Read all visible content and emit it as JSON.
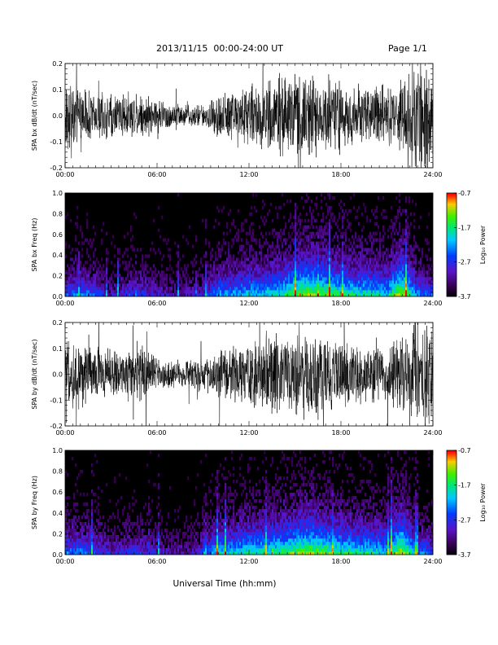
{
  "header": {
    "date_range": "2013/11/15  00:00-24:00 UT",
    "page": "Page 1/1"
  },
  "xlabel": "Universal Time (hh:mm)",
  "colors": {
    "background": "#ffffff",
    "ink": "#000000",
    "spectrogram_bg": "#000000"
  },
  "chart_data": [
    {
      "type": "line",
      "ylabel": "SPA bx dB/dt (nT/sec)",
      "xlim": [
        0,
        24
      ],
      "ylim": [
        -0.2,
        0.2
      ],
      "x_ticks": [
        "00:00",
        "06:00",
        "12:00",
        "18:00",
        "24:00"
      ],
      "y_ticks": [
        "-0.2",
        "-0.1",
        "0.0",
        "0.1",
        "0.2"
      ],
      "envelope": {
        "hours": [
          0,
          1,
          2,
          3,
          4,
          5,
          6,
          7,
          8,
          9,
          10,
          11,
          12,
          13,
          14,
          15,
          16,
          17,
          18,
          19,
          20,
          21,
          22,
          23,
          24
        ],
        "amplitude": [
          0.13,
          0.1,
          0.09,
          0.08,
          0.08,
          0.08,
          0.06,
          0.05,
          0.04,
          0.04,
          0.08,
          0.1,
          0.11,
          0.12,
          0.14,
          0.15,
          0.15,
          0.13,
          0.12,
          0.11,
          0.11,
          0.1,
          0.14,
          0.2,
          0.2
        ]
      }
    },
    {
      "type": "heatmap",
      "ylabel": "SPA bx Freq (Hz)",
      "xlim": [
        0,
        24
      ],
      "ylim": [
        0.0,
        1.0
      ],
      "x_ticks": [
        "00:00",
        "06:00",
        "12:00",
        "18:00",
        "24:00"
      ],
      "y_ticks": [
        "0.0",
        "0.2",
        "0.4",
        "0.6",
        "0.8",
        "1.0"
      ],
      "colorbar": {
        "label": "Log₁₀ Power",
        "ticks": [
          "-0.7",
          "-1.7",
          "-2.7",
          "-3.7"
        ],
        "min": -3.7,
        "max": -0.7
      },
      "activity": {
        "hours": [
          0,
          1,
          2,
          3,
          4,
          5,
          6,
          7,
          8,
          9,
          10,
          11,
          12,
          13,
          14,
          15,
          16,
          17,
          18,
          19,
          20,
          21,
          22,
          23,
          24
        ],
        "level": [
          0.35,
          0.4,
          0.35,
          0.2,
          0.3,
          0.3,
          0.25,
          0.2,
          0.2,
          0.25,
          0.45,
          0.45,
          0.5,
          0.5,
          0.55,
          0.65,
          0.7,
          0.65,
          0.6,
          0.55,
          0.55,
          0.5,
          0.75,
          0.4,
          0.35
        ]
      }
    },
    {
      "type": "line",
      "ylabel": "SPA by dB/dt (nT/sec)",
      "xlim": [
        0,
        24
      ],
      "ylim": [
        -0.2,
        0.2
      ],
      "x_ticks": [
        "00:00",
        "06:00",
        "12:00",
        "18:00",
        "24:00"
      ],
      "y_ticks": [
        "-0.2",
        "-0.1",
        "0.0",
        "0.1",
        "0.2"
      ],
      "envelope": {
        "hours": [
          0,
          1,
          2,
          3,
          4,
          5,
          6,
          7,
          8,
          9,
          10,
          11,
          12,
          13,
          14,
          15,
          16,
          17,
          18,
          19,
          20,
          21,
          22,
          23,
          24
        ],
        "amplitude": [
          0.11,
          0.12,
          0.1,
          0.09,
          0.08,
          0.1,
          0.06,
          0.05,
          0.05,
          0.06,
          0.09,
          0.1,
          0.12,
          0.13,
          0.14,
          0.15,
          0.15,
          0.14,
          0.12,
          0.11,
          0.11,
          0.1,
          0.14,
          0.2,
          0.2
        ]
      }
    },
    {
      "type": "heatmap",
      "ylabel": "SPA by Freq (Hz)",
      "xlim": [
        0,
        24
      ],
      "ylim": [
        0.0,
        1.0
      ],
      "x_ticks": [
        "00:00",
        "06:00",
        "12:00",
        "18:00",
        "24:00"
      ],
      "y_ticks": [
        "0.0",
        "0.2",
        "0.4",
        "0.6",
        "0.8",
        "1.0"
      ],
      "colorbar": {
        "label": "Log₁₀ Power",
        "ticks": [
          "-0.7",
          "-1.7",
          "-2.7",
          "-3.7"
        ],
        "min": -3.7,
        "max": -0.7
      },
      "activity": {
        "hours": [
          0,
          1,
          2,
          3,
          4,
          5,
          6,
          7,
          8,
          9,
          10,
          11,
          12,
          13,
          14,
          15,
          16,
          17,
          18,
          19,
          20,
          21,
          22,
          23,
          24
        ],
        "level": [
          0.4,
          0.4,
          0.35,
          0.25,
          0.3,
          0.3,
          0.25,
          0.2,
          0.2,
          0.3,
          0.5,
          0.5,
          0.55,
          0.55,
          0.6,
          0.65,
          0.7,
          0.65,
          0.6,
          0.55,
          0.55,
          0.5,
          0.75,
          0.4,
          0.35
        ]
      }
    }
  ]
}
